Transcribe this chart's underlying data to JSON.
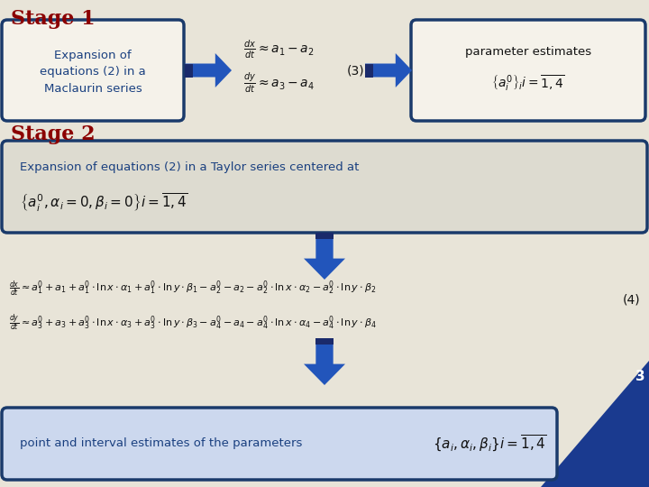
{
  "bg_color": "#e8e4d8",
  "stage1_title": "Stage 1",
  "stage2_title": "Stage 2",
  "stage1_title_color": "#8b0000",
  "stage2_title_color": "#8b0000",
  "box_border_color": "#1a3a6b",
  "box_bg_color": "#f5f2ea",
  "arrow_color_main": "#2255bb",
  "arrow_color_dark": "#1a2a6b",
  "text_blue": "#1a4080",
  "text_dark": "#111111",
  "slide_number": "3",
  "corner_color": "#1a3a8f",
  "bottom_box_bg": "#ccd8ee",
  "stage2_box_bg": "#dddbd0"
}
